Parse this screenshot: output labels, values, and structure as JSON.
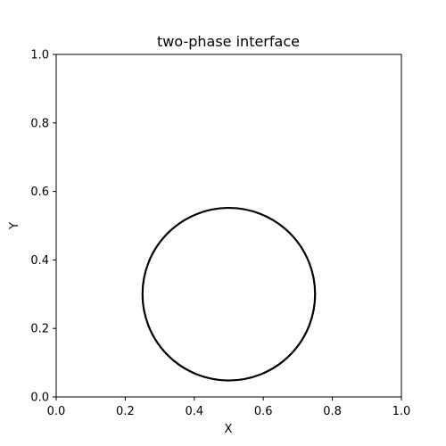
{
  "chart_data": {
    "type": "line",
    "title": "two-phase interface",
    "xlabel": "X",
    "ylabel": "Y",
    "xlim": [
      0.0,
      1.0
    ],
    "ylim": [
      0.0,
      1.0
    ],
    "xticks": [
      "0.0",
      "0.2",
      "0.4",
      "0.6",
      "0.8",
      "1.0"
    ],
    "yticks": [
      "0.0",
      "0.2",
      "0.4",
      "0.6",
      "0.8",
      "1.0"
    ],
    "grid": false,
    "series": [
      {
        "shape": "circle",
        "center": [
          0.5,
          0.3
        ],
        "radius": 0.25,
        "color": "#000000"
      }
    ]
  }
}
